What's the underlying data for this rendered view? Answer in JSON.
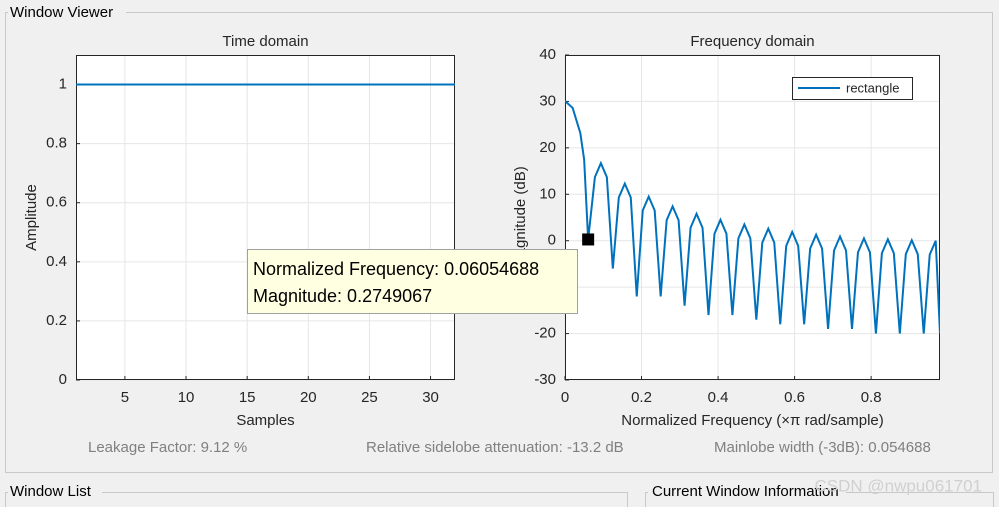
{
  "window": {
    "title": "Window Viewer",
    "window_list": "Window List",
    "window_info": "Current Window Information",
    "watermark": "CSDN @nwpu061701"
  },
  "stats": [
    "Leakage Factor: 9.12 %",
    "Relative sidelobe attenuation: -13.2 dB",
    "Mainlobe width (-3dB): 0.054688"
  ],
  "tooltip": {
    "lines": [
      "Normalized Frequency: 0.06054688",
      "Magnitude: 0.2749067"
    ]
  },
  "chart_data": [
    {
      "type": "line",
      "title": "Time domain",
      "x_label": "Samples",
      "y_label": "Amplitude",
      "x": [
        1,
        32
      ],
      "series": [
        {
          "color": "#0072bd",
          "values": [
            1,
            1
          ]
        }
      ],
      "xlim": [
        1,
        32
      ],
      "xticks": [
        5,
        10,
        15,
        20,
        25,
        30
      ],
      "ylim": [
        0,
        1.1
      ],
      "yticks": [
        0,
        0.2,
        0.4,
        0.6,
        0.8,
        1
      ],
      "grid": true
    },
    {
      "type": "line",
      "title": "Frequency domain",
      "x_label": "Normalized Frequency  (×π rad/sample)",
      "y_label": "Magnitude (dB)",
      "x": [
        0,
        0.02,
        0.04,
        0.05,
        0.0605,
        0.078125,
        0.09375,
        0.109375,
        0.125,
        0.140625,
        0.15625,
        0.171875,
        0.1875,
        0.203125,
        0.21875,
        0.234375,
        0.25,
        0.265625,
        0.28125,
        0.296875,
        0.3125,
        0.328125,
        0.34375,
        0.359375,
        0.375,
        0.390625,
        0.40625,
        0.421875,
        0.4375,
        0.453125,
        0.46875,
        0.484375,
        0.5,
        0.515625,
        0.53125,
        0.546875,
        0.5625,
        0.578125,
        0.59375,
        0.609375,
        0.625,
        0.640625,
        0.65625,
        0.671875,
        0.6875,
        0.703125,
        0.71875,
        0.734375,
        0.75,
        0.765625,
        0.78125,
        0.796875,
        0.8125,
        0.828125,
        0.84375,
        0.859375,
        0.875,
        0.890625,
        0.90625,
        0.921875,
        0.9375,
        0.953125,
        0.96875,
        0.98
      ],
      "series": [
        {
          "name": "rectangle",
          "color": "#0072bd",
          "values": [
            30.1,
            28.6,
            23.2,
            17.5,
            0.27,
            13.7,
            16.7,
            13.7,
            -6,
            9.3,
            12.3,
            9.3,
            -12,
            6.5,
            9.5,
            6.5,
            -12,
            4.4,
            7.4,
            4.4,
            -14,
            2.8,
            5.8,
            2.8,
            -16,
            1.5,
            4.5,
            1.5,
            -16,
            0.5,
            3.5,
            0.5,
            -17,
            -0.4,
            2.6,
            -0.4,
            -18,
            -1.1,
            1.9,
            -1.1,
            -18,
            -1.7,
            1.3,
            -1.7,
            -19,
            -2.1,
            0.9,
            -2.1,
            -19,
            -2.5,
            0.5,
            -2.5,
            -20,
            -2.7,
            0.3,
            -2.7,
            -20,
            -2.9,
            0.1,
            -2.9,
            -20,
            -3,
            0,
            -20
          ]
        }
      ],
      "xlim": [
        0,
        0.98
      ],
      "xticks": [
        0,
        0.2,
        0.4,
        0.6,
        0.8
      ],
      "ylim": [
        -30,
        40
      ],
      "yticks": [
        -30,
        -20,
        -10,
        0,
        10,
        20,
        30,
        40
      ],
      "grid": true,
      "legend": "upper right"
    }
  ]
}
